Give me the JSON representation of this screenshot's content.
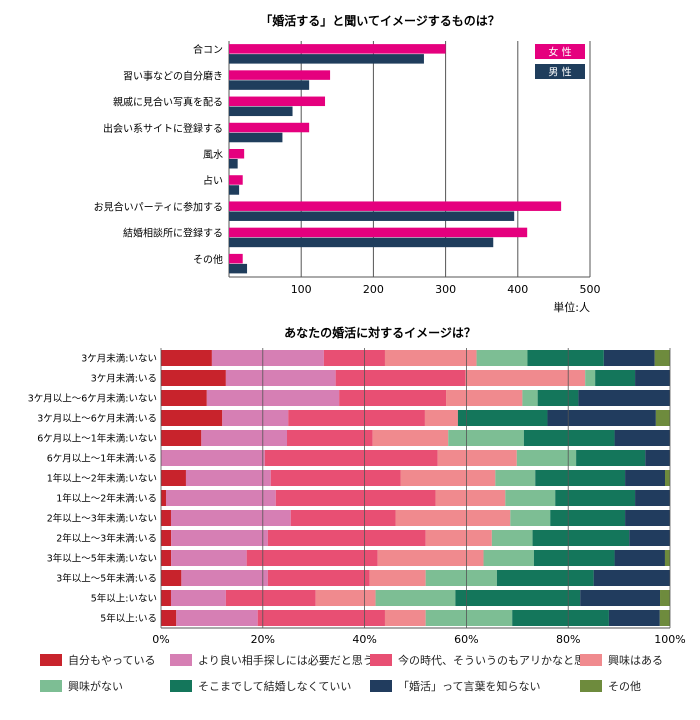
{
  "charts": [
    {
      "type": "bar",
      "orientation": "horizontal",
      "title": "「婚活する」と聞いてイメージするものは？",
      "categories": [
        "合コン",
        "習い事などの自分磨き",
        "親戚に見合い写真を配る",
        "出会い系サイトに登録する",
        "風水",
        "占い",
        "お見合いパーティに参加する",
        "結婚相談所に登録する",
        "その他"
      ],
      "series": [
        {
          "name": "女 性",
          "color": "#e5007e",
          "values": [
            300,
            140,
            133,
            111,
            21,
            19,
            460,
            413,
            19
          ]
        },
        {
          "name": "男 性",
          "color": "#1f3d5c",
          "values": [
            270,
            111,
            88,
            74,
            12,
            14,
            395,
            366,
            25
          ]
        }
      ],
      "xlim": [
        0,
        500
      ],
      "xticks": [
        "100",
        "200",
        "300",
        "400",
        "500"
      ],
      "unit_label": "単位:人",
      "grid": true,
      "legend": "top-right"
    },
    {
      "type": "bar",
      "orientation": "horizontal",
      "stacked": "percent",
      "title": "あなたの婚活に対するイメージは？",
      "categories": [
        "3ケ月未満:いない",
        "3ケ月未満:いる",
        "3ケ月以上〜6ケ月未満:いない",
        "3ケ月以上〜6ケ月未満:いる",
        "6ケ月以上〜1年未満:いない",
        "6ケ月以上〜1年未満:いる",
        "1年以上〜2年未満:いない",
        "1年以上〜2年未満:いる",
        "2年以上〜3年未満:いない",
        "2年以上〜3年未満:いる",
        "3年以上〜5年未満:いない",
        "3年以上〜5年未満:いる",
        "5年以上:いない",
        "5年以上:いる"
      ],
      "series": [
        {
          "name": "自分もやっている",
          "color": "#c8232c",
          "values": [
            10,
            13,
            9,
            13,
            8,
            0,
            5,
            1,
            2,
            2,
            2,
            4,
            2,
            3
          ]
        },
        {
          "name": "より良い相手探しには必要だと思う",
          "color": "#d67fb4",
          "values": [
            22,
            22,
            26,
            14,
            17,
            21,
            17,
            22,
            24,
            19,
            15,
            17,
            11,
            16
          ]
        },
        {
          "name": "今の時代、そういうのもアリかなと思う",
          "color": "#e84f73",
          "values": [
            12,
            26,
            21,
            29,
            17,
            35,
            26,
            32,
            21,
            31,
            26,
            20,
            18,
            25
          ]
        },
        {
          "name": "興味はある",
          "color": "#f08a8e",
          "values": [
            18,
            24,
            15,
            7,
            15,
            16,
            19,
            14,
            23,
            13,
            21,
            11,
            12,
            8
          ]
        },
        {
          "name": "興味がない",
          "color": "#7dbe94",
          "values": [
            10,
            2,
            3,
            0,
            15,
            12,
            8,
            10,
            8,
            8,
            10,
            14,
            16,
            17
          ]
        },
        {
          "name": "そこまでして結婚しなくていい",
          "color": "#14765b",
          "values": [
            15,
            8,
            8,
            19,
            18,
            14,
            18,
            16,
            15,
            19,
            16,
            19,
            25,
            19
          ]
        },
        {
          "name": "「婚活」って言葉を知らない",
          "color": "#213c5e",
          "values": [
            10,
            7,
            18,
            23,
            11,
            5,
            8,
            7,
            9,
            8,
            10,
            15,
            16,
            10
          ]
        },
        {
          "name": "その他",
          "color": "#6e8b3d",
          "values": [
            3,
            0,
            0,
            3,
            0,
            0,
            1,
            0,
            0,
            0,
            1,
            0,
            2,
            2
          ]
        }
      ],
      "xlim": [
        0,
        100
      ],
      "xticks": [
        "0%",
        "20%",
        "40%",
        "60%",
        "80%",
        "100%"
      ],
      "grid": true,
      "legend": "bottom"
    }
  ]
}
